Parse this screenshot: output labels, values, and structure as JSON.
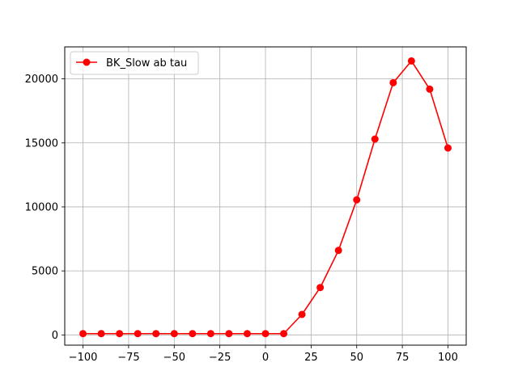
{
  "chart_data": {
    "type": "line",
    "title": "",
    "xlabel": "",
    "ylabel": "",
    "xlim": [
      -110,
      110
    ],
    "ylim": [
      -800,
      22500
    ],
    "x_ticks": [
      -100,
      -75,
      -50,
      -25,
      0,
      25,
      50,
      75,
      100
    ],
    "x_tick_labels": [
      "−100",
      "−75",
      "−50",
      "−25",
      "0",
      "25",
      "50",
      "75",
      "100"
    ],
    "y_ticks": [
      0,
      5000,
      10000,
      15000,
      20000
    ],
    "y_tick_labels": [
      "0",
      "5000",
      "10000",
      "15000",
      "20000"
    ],
    "grid": true,
    "legend_position": "top-left",
    "series": [
      {
        "name": "BK_Slow ab tau",
        "color": "#ff0000",
        "marker": "circle",
        "x": [
          -100,
          -90,
          -80,
          -70,
          -60,
          -50,
          -40,
          -30,
          -20,
          -10,
          0,
          10,
          20,
          30,
          40,
          50,
          60,
          70,
          80,
          90,
          100
        ],
        "y": [
          100,
          100,
          100,
          100,
          100,
          100,
          100,
          100,
          100,
          100,
          100,
          100,
          1600,
          3700,
          6600,
          10550,
          15300,
          19700,
          21400,
          19200,
          14600
        ]
      }
    ]
  }
}
